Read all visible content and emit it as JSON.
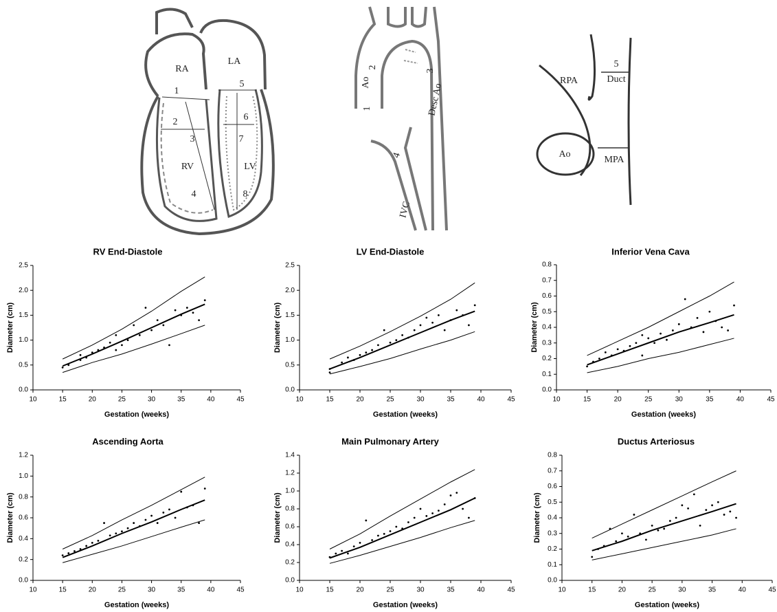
{
  "diagrams": {
    "heart": {
      "labels": [
        "RA",
        "LA",
        "1",
        "2",
        "3",
        "RV",
        "4",
        "5",
        "6",
        "7",
        "LV",
        "8"
      ]
    },
    "aorta": {
      "labels": [
        "Ao",
        "2",
        "1",
        "3",
        "Desc Ao",
        "4",
        "IVC"
      ]
    },
    "pulmonary": {
      "labels": [
        "RPA",
        "5",
        "Duct",
        "Ao",
        "MPA"
      ]
    }
  },
  "chart_data": [
    {
      "type": "scatter",
      "title": "RV End-Diastole",
      "x_label": "Gestation (weeks)",
      "y_label": "Diameter (cm)",
      "xlim": [
        10,
        45
      ],
      "xticks": [
        10,
        15,
        20,
        25,
        30,
        35,
        40,
        45
      ],
      "ylim": [
        0,
        2.5
      ],
      "yticks": [
        {
          "value": 0,
          "label": "0.0"
        },
        0.5,
        {
          "value": 1,
          "label": "1.0"
        },
        1.5,
        {
          "value": 2,
          "label": "2.0"
        },
        2.5
      ],
      "series": [
        {
          "style": "points",
          "color": "#000000",
          "x": [
            15,
            16,
            18,
            18,
            19,
            20,
            21,
            22,
            23,
            24,
            24,
            25,
            26,
            27,
            28,
            29,
            30,
            31,
            32,
            33,
            34,
            35,
            36,
            37,
            38,
            39
          ],
          "values": [
            0.45,
            0.5,
            0.6,
            0.7,
            0.65,
            0.75,
            0.8,
            0.85,
            0.95,
            1.1,
            0.8,
            0.9,
            1.0,
            1.3,
            1.1,
            1.65,
            1.2,
            1.4,
            1.3,
            0.9,
            1.6,
            1.5,
            1.65,
            1.55,
            1.4,
            1.8
          ]
        },
        {
          "style": "line-bold",
          "color": "#000000",
          "x": [
            15,
            20,
            25,
            30,
            35,
            39
          ],
          "values": [
            0.48,
            0.72,
            0.98,
            1.25,
            1.52,
            1.72
          ]
        },
        {
          "style": "line",
          "color": "#000000",
          "x": [
            15,
            20,
            25,
            30,
            35,
            39
          ],
          "values": [
            0.62,
            0.9,
            1.22,
            1.58,
            1.98,
            2.27
          ]
        },
        {
          "style": "line",
          "color": "#000000",
          "x": [
            15,
            20,
            25,
            30,
            35,
            39
          ],
          "values": [
            0.35,
            0.55,
            0.72,
            0.92,
            1.13,
            1.3
          ]
        }
      ]
    },
    {
      "type": "scatter",
      "title": "LV End-Diastole",
      "x_label": "Gestation (weeks)",
      "y_label": "Diameter (cm)",
      "xlim": [
        10,
        45
      ],
      "xticks": [
        10,
        15,
        20,
        25,
        30,
        35,
        40,
        45
      ],
      "ylim": [
        0,
        2.5
      ],
      "yticks": [
        {
          "value": 0,
          "label": "0.0"
        },
        0.5,
        {
          "value": 1,
          "label": "1.0"
        },
        1.5,
        {
          "value": 2,
          "label": "2.0"
        },
        2.5
      ],
      "series": [
        {
          "style": "points",
          "color": "#000000",
          "x": [
            15,
            15,
            17,
            18,
            19,
            20,
            21,
            22,
            23,
            24,
            25,
            26,
            27,
            28,
            29,
            30,
            31,
            32,
            33,
            34,
            35,
            36,
            37,
            38,
            39
          ],
          "values": [
            0.35,
            0.42,
            0.55,
            0.65,
            0.6,
            0.7,
            0.75,
            0.8,
            0.9,
            1.2,
            0.95,
            1.0,
            1.1,
            1.05,
            1.2,
            1.3,
            1.45,
            1.35,
            1.5,
            1.2,
            1.4,
            1.6,
            1.5,
            1.3,
            1.7
          ]
        },
        {
          "style": "line-bold",
          "color": "#000000",
          "x": [
            15,
            20,
            25,
            30,
            35,
            39
          ],
          "values": [
            0.42,
            0.65,
            0.9,
            1.15,
            1.4,
            1.58
          ]
        },
        {
          "style": "line",
          "color": "#000000",
          "x": [
            15,
            20,
            25,
            30,
            35,
            39
          ],
          "values": [
            0.62,
            0.88,
            1.17,
            1.48,
            1.82,
            2.15
          ]
        },
        {
          "style": "line",
          "color": "#000000",
          "x": [
            15,
            20,
            25,
            30,
            35,
            39
          ],
          "values": [
            0.32,
            0.47,
            0.63,
            0.82,
            1.0,
            1.17
          ]
        }
      ]
    },
    {
      "type": "scatter",
      "title": "Inferior Vena Cava",
      "x_label": "Gestation (weeks)",
      "y_label": "Diameter (cm)",
      "xlim": [
        10,
        45
      ],
      "xticks": [
        10,
        15,
        20,
        25,
        30,
        35,
        40,
        45
      ],
      "ylim": [
        0,
        0.8
      ],
      "yticks": [
        {
          "value": 0,
          "label": "0.0"
        },
        0.1,
        0.2,
        0.3,
        0.4,
        0.5,
        0.6,
        0.7,
        0.8
      ],
      "series": [
        {
          "style": "points",
          "color": "#000000",
          "x": [
            15,
            16,
            17,
            18,
            19,
            20,
            21,
            22,
            23,
            24,
            24,
            25,
            26,
            27,
            28,
            29,
            30,
            31,
            32,
            33,
            34,
            35,
            36,
            37,
            38,
            39
          ],
          "values": [
            0.15,
            0.18,
            0.2,
            0.24,
            0.22,
            0.26,
            0.25,
            0.28,
            0.3,
            0.35,
            0.22,
            0.33,
            0.3,
            0.36,
            0.32,
            0.38,
            0.42,
            0.58,
            0.4,
            0.46,
            0.37,
            0.5,
            0.44,
            0.4,
            0.38,
            0.54
          ]
        },
        {
          "style": "line-bold",
          "color": "#000000",
          "x": [
            15,
            20,
            25,
            30,
            35,
            39
          ],
          "values": [
            0.16,
            0.23,
            0.3,
            0.37,
            0.43,
            0.48
          ]
        },
        {
          "style": "line",
          "color": "#000000",
          "x": [
            15,
            20,
            25,
            30,
            35,
            39
          ],
          "values": [
            0.22,
            0.31,
            0.4,
            0.5,
            0.6,
            0.69
          ]
        },
        {
          "style": "line",
          "color": "#000000",
          "x": [
            15,
            20,
            25,
            30,
            35,
            39
          ],
          "values": [
            0.11,
            0.15,
            0.2,
            0.24,
            0.29,
            0.33
          ]
        }
      ]
    },
    {
      "type": "scatter",
      "title": "Ascending Aorta",
      "x_label": "Gestation (weeks)",
      "y_label": "Diameter (cm)",
      "xlim": [
        10,
        45
      ],
      "xticks": [
        10,
        15,
        20,
        25,
        30,
        35,
        40,
        45
      ],
      "ylim": [
        0,
        1.2
      ],
      "yticks": [
        {
          "value": 0,
          "label": "0.0"
        },
        0.2,
        0.4,
        0.6,
        0.8,
        {
          "value": 1,
          "label": "1.0"
        },
        1.2
      ],
      "series": [
        {
          "style": "points",
          "color": "#000000",
          "x": [
            15,
            16,
            17,
            18,
            19,
            20,
            21,
            22,
            23,
            24,
            25,
            26,
            27,
            28,
            29,
            30,
            31,
            32,
            33,
            34,
            35,
            36,
            37,
            38,
            39
          ],
          "values": [
            0.24,
            0.26,
            0.28,
            0.3,
            0.33,
            0.36,
            0.38,
            0.55,
            0.43,
            0.45,
            0.47,
            0.5,
            0.55,
            0.52,
            0.58,
            0.62,
            0.55,
            0.65,
            0.68,
            0.6,
            0.85,
            0.7,
            0.72,
            0.55,
            0.88
          ]
        },
        {
          "style": "line-bold",
          "color": "#000000",
          "x": [
            15,
            20,
            25,
            30,
            35,
            39
          ],
          "values": [
            0.22,
            0.33,
            0.45,
            0.56,
            0.68,
            0.77
          ]
        },
        {
          "style": "line",
          "color": "#000000",
          "x": [
            15,
            20,
            25,
            30,
            35,
            39
          ],
          "values": [
            0.3,
            0.43,
            0.58,
            0.72,
            0.87,
            0.99
          ]
        },
        {
          "style": "line",
          "color": "#000000",
          "x": [
            15,
            20,
            25,
            30,
            35,
            39
          ],
          "values": [
            0.17,
            0.25,
            0.33,
            0.42,
            0.51,
            0.58
          ]
        }
      ]
    },
    {
      "type": "scatter",
      "title": "Main Pulmonary Artery",
      "x_label": "Gestation (weeks)",
      "y_label": "Diameter (cm)",
      "xlim": [
        10,
        45
      ],
      "xticks": [
        10,
        15,
        20,
        25,
        30,
        35,
        40,
        45
      ],
      "ylim": [
        0,
        1.4
      ],
      "yticks": [
        {
          "value": 0,
          "label": "0.0"
        },
        0.2,
        0.4,
        0.6,
        0.8,
        {
          "value": 1,
          "label": "1.0"
        },
        1.2,
        1.4
      ],
      "series": [
        {
          "style": "points",
          "color": "#000000",
          "x": [
            15,
            16,
            17,
            18,
            19,
            20,
            21,
            22,
            23,
            24,
            25,
            26,
            27,
            28,
            29,
            30,
            31,
            32,
            33,
            34,
            35,
            36,
            37,
            38,
            39
          ],
          "values": [
            0.26,
            0.3,
            0.33,
            0.3,
            0.38,
            0.42,
            0.67,
            0.45,
            0.5,
            0.52,
            0.55,
            0.6,
            0.58,
            0.65,
            0.7,
            0.8,
            0.72,
            0.75,
            0.78,
            0.85,
            0.95,
            0.98,
            0.8,
            0.7,
            0.92
          ]
        },
        {
          "style": "line-bold",
          "color": "#000000",
          "x": [
            15,
            20,
            25,
            30,
            35,
            39
          ],
          "values": [
            0.25,
            0.37,
            0.51,
            0.65,
            0.79,
            0.92
          ]
        },
        {
          "style": "line",
          "color": "#000000",
          "x": [
            15,
            20,
            25,
            30,
            35,
            39
          ],
          "values": [
            0.35,
            0.52,
            0.72,
            0.91,
            1.1,
            1.24
          ]
        },
        {
          "style": "line",
          "color": "#000000",
          "x": [
            15,
            20,
            25,
            30,
            35,
            39
          ],
          "values": [
            0.19,
            0.28,
            0.38,
            0.48,
            0.59,
            0.67
          ]
        }
      ]
    },
    {
      "type": "scatter",
      "title": "Ductus Arteriosus",
      "x_label": "Gestation (weeks)",
      "y_label": "Diameter (cm)",
      "xlim": [
        10,
        45
      ],
      "xticks": [
        10,
        15,
        20,
        25,
        30,
        35,
        40,
        45
      ],
      "ylim": [
        0,
        0.8
      ],
      "yticks": [
        {
          "value": 0,
          "label": "0.0"
        },
        0.1,
        0.2,
        0.3,
        0.4,
        0.5,
        0.6,
        0.7,
        0.8
      ],
      "series": [
        {
          "style": "points",
          "color": "#000000",
          "x": [
            15,
            16,
            17,
            18,
            19,
            20,
            21,
            22,
            23,
            24,
            25,
            26,
            27,
            28,
            29,
            30,
            31,
            32,
            33,
            34,
            35,
            36,
            37,
            38,
            39
          ],
          "values": [
            0.15,
            0.2,
            0.22,
            0.33,
            0.25,
            0.3,
            0.28,
            0.42,
            0.3,
            0.26,
            0.35,
            0.32,
            0.33,
            0.38,
            0.4,
            0.48,
            0.46,
            0.55,
            0.35,
            0.45,
            0.48,
            0.5,
            0.42,
            0.44,
            0.4
          ]
        },
        {
          "style": "line-bold",
          "color": "#000000",
          "x": [
            15,
            20,
            25,
            30,
            35,
            39
          ],
          "values": [
            0.19,
            0.25,
            0.32,
            0.38,
            0.44,
            0.49
          ]
        },
        {
          "style": "line",
          "color": "#000000",
          "x": [
            15,
            20,
            25,
            30,
            35,
            39
          ],
          "values": [
            0.27,
            0.36,
            0.45,
            0.54,
            0.63,
            0.7
          ]
        },
        {
          "style": "line",
          "color": "#000000",
          "x": [
            15,
            20,
            25,
            30,
            35,
            39
          ],
          "values": [
            0.13,
            0.17,
            0.21,
            0.25,
            0.29,
            0.33
          ]
        }
      ]
    }
  ]
}
